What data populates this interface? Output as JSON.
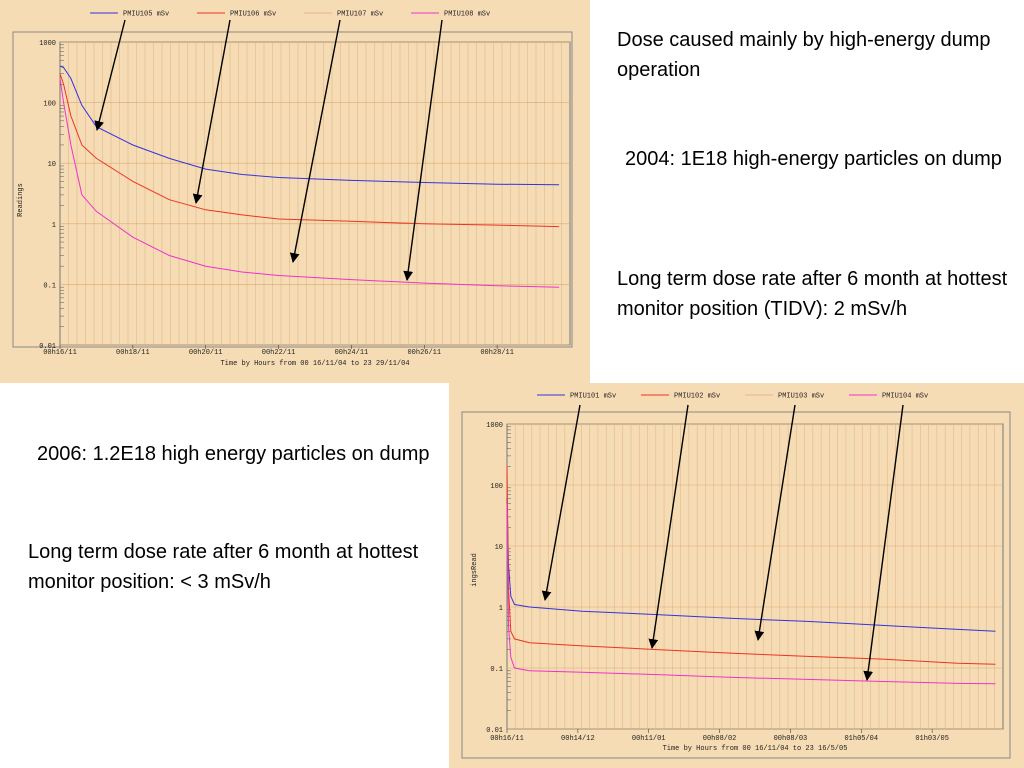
{
  "notes": {
    "dose_main": "Dose caused mainly by high-energy dump operation",
    "y2004": "2004: 1E18 high-energy particles on dump",
    "long_term_2004": "Long term dose rate after 6 month at hottest monitor position (TIDV): 2 mSv/h",
    "y2006": "2006: 1.2E18 high energy particles on dump",
    "long_term_2006": "Long term dose rate after 6 month at hottest monitor position: < 3 mSv/h"
  },
  "chart_data": [
    {
      "type": "line",
      "title": "",
      "xlabel": "Time by Hours  from 00 16/11/04 to 23 29/11/04",
      "ylabel": "Readings",
      "yscale": "log",
      "ylim": [
        0.01,
        1000
      ],
      "y_ticks": [
        "1000",
        "100",
        "10",
        "1",
        "0.1",
        "0.01"
      ],
      "x_ticks": [
        "00h16/11",
        "00h18/11",
        "00h20/11",
        "00h22/11",
        "00h24/11",
        "00h26/11",
        "00h28/11"
      ],
      "legend_position": "top",
      "series": [
        {
          "name": "PMIU105  mSv",
          "color": "#3333dd",
          "x": [
            0,
            0.1,
            0.3,
            0.6,
            1.0,
            2.0,
            3.0,
            4.0,
            5.0,
            6.0,
            8.0,
            10.0,
            12.0,
            13.7
          ],
          "values": [
            400,
            380,
            250,
            90,
            40,
            20,
            12,
            8,
            6.5,
            5.8,
            5.2,
            4.8,
            4.5,
            4.4
          ]
        },
        {
          "name": "PMIU106  mSv",
          "color": "#ee3322",
          "x": [
            0,
            0.1,
            0.3,
            0.6,
            1.0,
            2.0,
            3.0,
            4.0,
            5.0,
            6.0,
            8.0,
            10.0,
            12.0,
            13.7
          ],
          "values": [
            300,
            200,
            60,
            20,
            12,
            5,
            2.5,
            1.7,
            1.4,
            1.2,
            1.1,
            1.0,
            0.95,
            0.9
          ]
        },
        {
          "name": "PMIU107  mSv",
          "color": "#e8b0a0",
          "x": [],
          "values": []
        },
        {
          "name": "PMIU108  mSv",
          "color": "#ee33cc",
          "x": [
            0,
            0.1,
            0.3,
            0.6,
            1.0,
            2.0,
            3.0,
            4.0,
            5.0,
            6.0,
            8.0,
            10.0,
            12.0,
            13.7
          ],
          "values": [
            250,
            100,
            20,
            3,
            1.6,
            0.6,
            0.3,
            0.2,
            0.16,
            0.14,
            0.12,
            0.105,
            0.095,
            0.09
          ]
        }
      ],
      "arrows": [
        "PMIU105  mSv",
        "PMIU106  mSv",
        "PMIU107  mSv",
        "PMIU108  mSv"
      ]
    },
    {
      "type": "line",
      "title": "",
      "xlabel": "Time by Hours  from 00 16/11/04 to 23 16/5/05",
      "ylabel": "ingsRead",
      "yscale": "log",
      "ylim": [
        0.01,
        1000
      ],
      "y_ticks": [
        "1000",
        "100",
        "10",
        "1",
        "0.1",
        "0.01"
      ],
      "x_ticks": [
        "00h16/11",
        "00h14/12",
        "00h11/01",
        "00h08/02",
        "00h08/03",
        "01h05/04",
        "01h03/05"
      ],
      "legend_position": "top",
      "series": [
        {
          "name": "PMIU101  mSv",
          "color": "#3333dd",
          "x": [
            0,
            0.02,
            0.05,
            0.1,
            0.3,
            1.0,
            2.0,
            3.0,
            4.0,
            5.0,
            6.0,
            6.5
          ],
          "values": [
            60,
            5,
            1.5,
            1.1,
            1.0,
            0.85,
            0.75,
            0.65,
            0.58,
            0.5,
            0.43,
            0.4
          ]
        },
        {
          "name": "PMIU102  mSv",
          "color": "#ee3322",
          "x": [
            0,
            0.02,
            0.05,
            0.1,
            0.3,
            1.0,
            2.0,
            3.0,
            4.0,
            5.0,
            6.0,
            6.5
          ],
          "values": [
            200,
            2,
            0.4,
            0.3,
            0.26,
            0.23,
            0.2,
            0.175,
            0.155,
            0.14,
            0.12,
            0.115
          ]
        },
        {
          "name": "PMIU103  mSv",
          "color": "#e8b0a0",
          "x": [],
          "values": []
        },
        {
          "name": "PMIU104  mSv",
          "color": "#ee33cc",
          "x": [
            0,
            0.02,
            0.05,
            0.1,
            0.3,
            1.0,
            2.0,
            3.0,
            4.0,
            5.0,
            6.0,
            6.5
          ],
          "values": [
            50,
            0.5,
            0.15,
            0.1,
            0.09,
            0.085,
            0.078,
            0.07,
            0.065,
            0.06,
            0.056,
            0.055
          ]
        }
      ],
      "arrows": [
        "PMIU101  mSv",
        "PMIU102  mSv",
        "PMIU103  mSv",
        "PMIU104  mSv"
      ]
    }
  ]
}
